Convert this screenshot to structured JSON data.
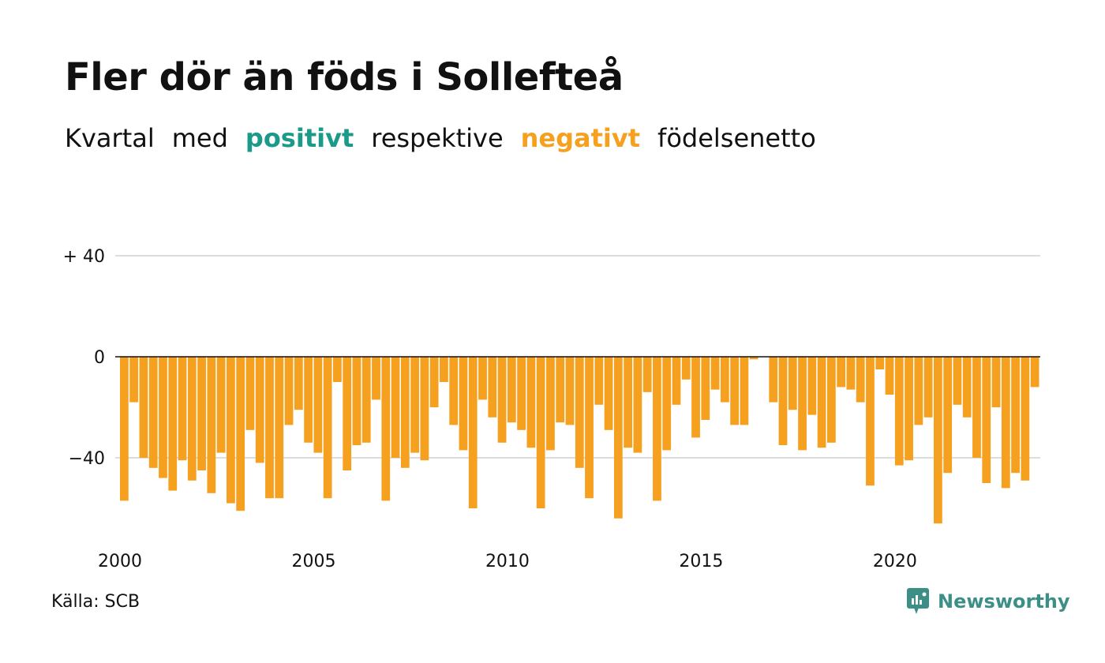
{
  "title": "Fler dör än föds i Sollefteå",
  "subtitle": {
    "part1": "Kvartal",
    "part2": "med",
    "positive": "positivt",
    "part3": "respektive",
    "negative": "negativt",
    "part4": "födelsenetto"
  },
  "colors": {
    "positive": "#1b9a8a",
    "negative": "#f5a01e",
    "grid": "#dddddd",
    "baseline": "#111111",
    "brand": "#3b8f86"
  },
  "source": "Källa: SCB",
  "brand": {
    "name": "Newsworthy",
    "icon": "newsworthy-logo-icon"
  },
  "chart_data": {
    "type": "bar",
    "x_start": "2000-Q1",
    "y_ticks": [
      40,
      0,
      -40
    ],
    "y_tick_labels": [
      "+ 40",
      "0",
      "−40"
    ],
    "x_ticks": [
      2000,
      2005,
      2010,
      2015,
      2020
    ],
    "x_tick_labels": [
      "2000",
      "2005",
      "2010",
      "2015",
      "2020"
    ],
    "ylim": [
      -70,
      40
    ],
    "grid": true,
    "values": [
      -57,
      -18,
      -40,
      -44,
      -48,
      -53,
      -41,
      -49,
      -45,
      -54,
      -38,
      -58,
      -61,
      -29,
      -42,
      -56,
      -56,
      -27,
      -21,
      -34,
      -38,
      -56,
      -10,
      -45,
      -35,
      -34,
      -17,
      -57,
      -40,
      -44,
      -38,
      -41,
      -20,
      -10,
      -27,
      -37,
      -60,
      -17,
      -24,
      -34,
      -26,
      -29,
      -36,
      -60,
      -37,
      -26,
      -27,
      -44,
      -56,
      -19,
      -29,
      -64,
      -36,
      -38,
      -14,
      -57,
      -37,
      -19,
      -9,
      -32,
      -25,
      -13,
      -18,
      -27,
      -27,
      -1,
      0,
      -18,
      -35,
      -21,
      -37,
      -23,
      -36,
      -34,
      -12,
      -13,
      -18,
      -51,
      -5,
      -15,
      -43,
      -41,
      -27,
      -24,
      -66,
      -46,
      -19,
      -24,
      -40,
      -50,
      -20,
      -52,
      -46,
      -49,
      -12
    ]
  }
}
